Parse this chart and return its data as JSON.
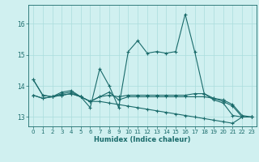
{
  "xlabel": "Humidex (Indice chaleur)",
  "x": [
    0,
    1,
    2,
    3,
    4,
    5,
    6,
    7,
    8,
    9,
    10,
    11,
    12,
    13,
    14,
    15,
    16,
    17,
    18,
    19,
    20,
    21,
    22,
    23
  ],
  "line1": [
    14.2,
    13.7,
    13.65,
    13.8,
    13.85,
    13.65,
    13.3,
    14.55,
    14.0,
    13.3,
    15.1,
    15.45,
    15.05,
    15.1,
    15.05,
    15.1,
    16.3,
    15.1,
    13.75,
    13.55,
    13.45,
    13.05,
    13.0,
    13.0
  ],
  "line2": [
    13.7,
    13.6,
    13.65,
    13.7,
    13.75,
    13.65,
    13.5,
    13.65,
    13.7,
    13.65,
    13.7,
    13.7,
    13.7,
    13.7,
    13.7,
    13.7,
    13.7,
    13.75,
    13.75,
    13.6,
    13.55,
    13.4,
    13.05,
    13.0
  ],
  "line3": [
    13.7,
    13.6,
    13.65,
    13.7,
    13.75,
    13.65,
    13.5,
    13.5,
    13.45,
    13.4,
    13.35,
    13.3,
    13.25,
    13.2,
    13.15,
    13.1,
    13.05,
    13.0,
    12.95,
    12.9,
    12.85,
    12.8,
    13.0,
    13.0
  ],
  "line4": [
    14.2,
    13.7,
    13.65,
    13.75,
    13.8,
    13.65,
    13.5,
    13.65,
    13.8,
    13.55,
    13.65,
    13.65,
    13.65,
    13.65,
    13.65,
    13.65,
    13.65,
    13.65,
    13.65,
    13.6,
    13.5,
    13.35,
    13.0,
    13.0
  ],
  "line_color": "#1a6b6b",
  "bg_color": "#d0f0f0",
  "grid_color": "#aadddd",
  "ylim": [
    12.7,
    16.6
  ],
  "yticks": [
    13,
    14,
    15,
    16
  ],
  "xticks": [
    0,
    1,
    2,
    3,
    4,
    5,
    6,
    7,
    8,
    9,
    10,
    11,
    12,
    13,
    14,
    15,
    16,
    17,
    18,
    19,
    20,
    21,
    22,
    23
  ],
  "marker": "+"
}
